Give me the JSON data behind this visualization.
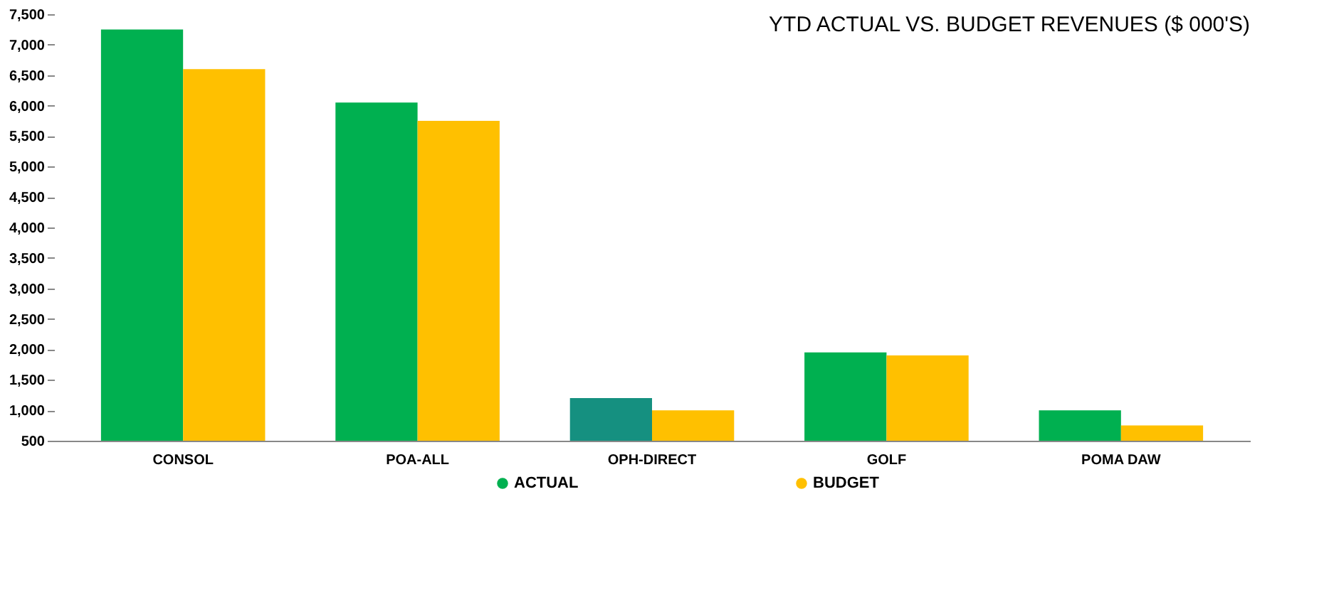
{
  "chart_data": {
    "type": "bar",
    "title": "YTD ACTUAL VS. BUDGET REVENUES ($ 000'S)",
    "categories": [
      "CONSOL",
      "POA-ALL",
      "OPH-DIRECT",
      "GOLF",
      "POMA DAW"
    ],
    "series": [
      {
        "name": "ACTUAL",
        "color": "#00b050",
        "colors": [
          "#00b050",
          "#00b050",
          "#159080",
          "#00b050",
          "#00b050"
        ],
        "values": [
          7250,
          6050,
          1200,
          1950,
          1000
        ]
      },
      {
        "name": "BUDGET",
        "color": "#ffc000",
        "values": [
          6600,
          5750,
          1000,
          1900,
          750
        ]
      }
    ],
    "ylim": [
      500,
      7500
    ],
    "yticks": [
      500,
      {
        "value": 1000,
        "label": "1,000"
      },
      {
        "value": 1500,
        "label": "1,500"
      },
      {
        "value": 2000,
        "label": "2,000"
      },
      {
        "value": 2500,
        "label": "2,500"
      },
      {
        "value": 3000,
        "label": "3,000"
      },
      {
        "value": 3500,
        "label": "3,500"
      },
      {
        "value": 4000,
        "label": "4,000"
      },
      {
        "value": 4500,
        "label": "4,500"
      },
      {
        "value": 5000,
        "label": "5,000"
      },
      {
        "value": 5500,
        "label": "5,500"
      },
      {
        "value": 6000,
        "label": "6,000"
      },
      {
        "value": 6500,
        "label": "6,500"
      },
      {
        "value": 7000,
        "label": "7,000"
      },
      {
        "value": 7500,
        "label": "7,500"
      }
    ],
    "grid": false,
    "legend": "bottom"
  }
}
